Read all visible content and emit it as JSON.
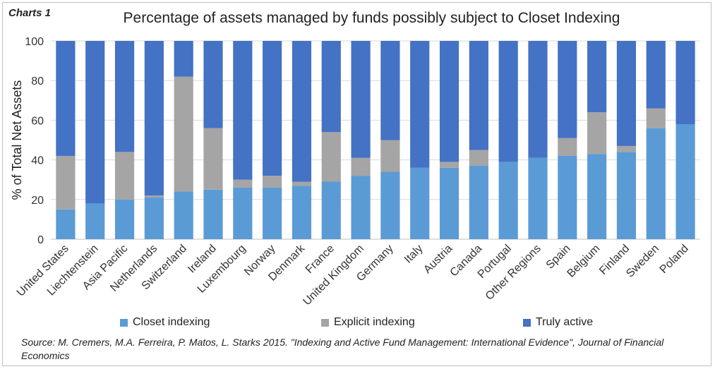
{
  "header": {
    "label": "Charts 1",
    "title": "Percentage of assets managed by funds possibly subject to Closet Indexing"
  },
  "source": "Source: M. Cremers, M.A. Ferreira, P. Matos, L. Starks 2015. \"Indexing and Active Fund Management: International Evidence\", Journal of Financial Economics",
  "colors": {
    "closet": "#5b9bd5",
    "explicit": "#a5a5a5",
    "active": "#4472c4",
    "grid": "#d9d9d9"
  },
  "chart_data": {
    "type": "bar",
    "stacked": true,
    "title": "Percentage of assets managed by funds possibly subject to Closet Indexing",
    "xlabel": "",
    "ylabel": "% of Total Net Assets",
    "ylim": [
      0,
      100
    ],
    "yticks": [
      0,
      20,
      40,
      60,
      80,
      100
    ],
    "grid": true,
    "legend_position": "bottom",
    "categories": [
      "United States",
      "Liechtenstein",
      "Asia Pacific",
      "Netherlands",
      "Switzerland",
      "Ireland",
      "Luxembourg",
      "Norway",
      "Denmark",
      "France",
      "United Kingdom",
      "Germany",
      "Italy",
      "Austria",
      "Canada",
      "Portugal",
      "Other Regions",
      "Spain",
      "Belgium",
      "Finland",
      "Sweden",
      "Poland"
    ],
    "series": [
      {
        "name": "Closet indexing",
        "values": [
          15,
          18,
          20,
          21,
          24,
          25,
          26,
          26,
          27,
          29,
          32,
          34,
          36,
          36,
          37,
          39,
          41,
          42,
          43,
          44,
          56,
          58
        ]
      },
      {
        "name": "Explicit indexing",
        "values": [
          27,
          0,
          24,
          1,
          58,
          31,
          4,
          6,
          2,
          25,
          9,
          16,
          0,
          3,
          8,
          0,
          0,
          9,
          21,
          3,
          10,
          0
        ]
      },
      {
        "name": "Truly active",
        "values": [
          58,
          82,
          56,
          78,
          18,
          44,
          70,
          68,
          71,
          46,
          59,
          50,
          64,
          61,
          55,
          61,
          59,
          49,
          36,
          53,
          34,
          42
        ]
      }
    ]
  }
}
